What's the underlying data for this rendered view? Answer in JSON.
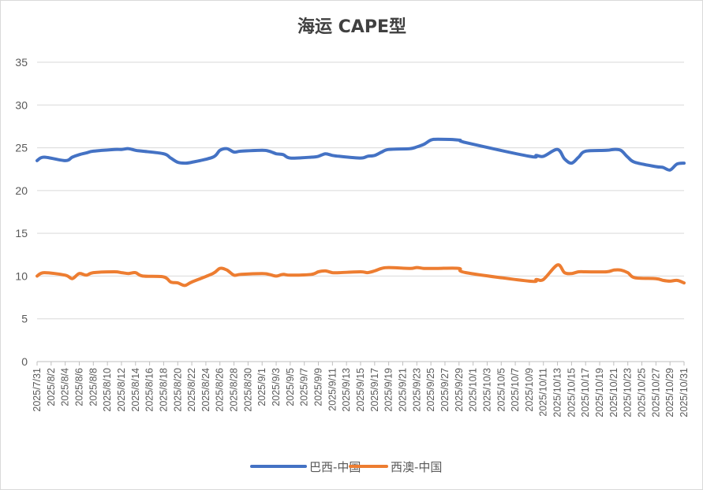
{
  "chart_data": {
    "type": "line",
    "title": "海运 CAPE型",
    "xlabel": "",
    "ylabel": "",
    "ylim": [
      0,
      35
    ],
    "yticks": [
      0,
      5,
      10,
      15,
      20,
      25,
      30,
      35
    ],
    "grid": true,
    "legend_position": "bottom",
    "x_start": "2025/7/31",
    "x_end": "2025/10/31",
    "x_tick_labels": [
      "2025/7/31",
      "2025/8/2",
      "2025/8/4",
      "2025/8/6",
      "2025/8/8",
      "2025/8/10",
      "2025/8/12",
      "2025/8/14",
      "2025/8/16",
      "2025/8/18",
      "2025/8/20",
      "2025/8/22",
      "2025/8/24",
      "2025/8/26",
      "2025/8/28",
      "2025/8/30",
      "2025/9/1",
      "2025/9/3",
      "2025/9/5",
      "2025/9/7",
      "2025/9/9",
      "2025/9/11",
      "2025/9/13",
      "2025/9/15",
      "2025/9/17",
      "2025/9/19",
      "2025/9/21",
      "2025/9/23",
      "2025/9/25",
      "2025/9/27",
      "2025/9/29",
      "2025/10/1",
      "2025/10/3",
      "2025/10/5",
      "2025/10/7",
      "2025/10/9",
      "2025/10/11",
      "2025/10/13",
      "2025/10/15",
      "2025/10/17",
      "2025/10/19",
      "2025/10/21",
      "2025/10/23",
      "2025/10/25",
      "2025/10/27",
      "2025/10/29",
      "2025/10/31"
    ],
    "series": [
      {
        "name": "巴西-中国",
        "color": "#4472c4",
        "x": [
          "2025/7/31",
          "2025/8/1",
          "2025/8/4",
          "2025/8/5",
          "2025/8/6",
          "2025/8/7",
          "2025/8/8",
          "2025/8/11",
          "2025/8/12",
          "2025/8/13",
          "2025/8/14",
          "2025/8/15",
          "2025/8/18",
          "2025/8/19",
          "2025/8/20",
          "2025/8/21",
          "2025/8/22",
          "2025/8/25",
          "2025/8/26",
          "2025/8/27",
          "2025/8/28",
          "2025/8/29",
          "2025/9/1",
          "2025/9/2",
          "2025/9/3",
          "2025/9/4",
          "2025/9/5",
          "2025/9/8",
          "2025/9/9",
          "2025/9/10",
          "2025/9/11",
          "2025/9/12",
          "2025/9/15",
          "2025/9/16",
          "2025/9/17",
          "2025/9/18",
          "2025/9/19",
          "2025/9/22",
          "2025/9/23",
          "2025/9/24",
          "2025/9/25",
          "2025/9/26",
          "2025/9/29",
          "2025/9/30",
          "2025/10/9",
          "2025/10/10",
          "2025/10/11",
          "2025/10/13",
          "2025/10/14",
          "2025/10/15",
          "2025/10/16",
          "2025/10/17",
          "2025/10/20",
          "2025/10/21",
          "2025/10/22",
          "2025/10/23",
          "2025/10/24",
          "2025/10/27",
          "2025/10/28",
          "2025/10/29",
          "2025/10/30",
          "2025/10/31"
        ],
        "values": [
          23.5,
          23.9,
          23.5,
          23.9,
          24.2,
          24.4,
          24.6,
          24.8,
          24.8,
          24.9,
          24.7,
          24.6,
          24.3,
          23.8,
          23.3,
          23.2,
          23.3,
          23.9,
          24.7,
          24.9,
          24.5,
          24.6,
          24.7,
          24.6,
          24.3,
          24.2,
          23.8,
          23.9,
          24.0,
          24.3,
          24.1,
          24.0,
          23.8,
          24.0,
          24.1,
          24.5,
          24.8,
          24.9,
          25.1,
          25.4,
          25.9,
          26.0,
          25.9,
          25.6,
          24.0,
          24.1,
          24.0,
          24.8,
          23.7,
          23.2,
          23.9,
          24.6,
          24.7,
          24.8,
          24.7,
          23.9,
          23.3,
          22.8,
          22.7,
          22.4,
          23.1,
          23.2
        ]
      },
      {
        "name": "西澳-中国",
        "color": "#ed7d31",
        "x": [
          "2025/7/31",
          "2025/8/1",
          "2025/8/4",
          "2025/8/5",
          "2025/8/6",
          "2025/8/7",
          "2025/8/8",
          "2025/8/11",
          "2025/8/12",
          "2025/8/13",
          "2025/8/14",
          "2025/8/15",
          "2025/8/18",
          "2025/8/19",
          "2025/8/20",
          "2025/8/21",
          "2025/8/22",
          "2025/8/25",
          "2025/8/26",
          "2025/8/27",
          "2025/8/28",
          "2025/8/29",
          "2025/9/1",
          "2025/9/2",
          "2025/9/3",
          "2025/9/4",
          "2025/9/5",
          "2025/9/8",
          "2025/9/9",
          "2025/9/10",
          "2025/9/11",
          "2025/9/12",
          "2025/9/15",
          "2025/9/16",
          "2025/9/17",
          "2025/9/18",
          "2025/9/19",
          "2025/9/22",
          "2025/9/23",
          "2025/9/24",
          "2025/9/25",
          "2025/9/26",
          "2025/9/29",
          "2025/9/30",
          "2025/10/9",
          "2025/10/10",
          "2025/10/11",
          "2025/10/13",
          "2025/10/14",
          "2025/10/15",
          "2025/10/16",
          "2025/10/17",
          "2025/10/20",
          "2025/10/21",
          "2025/10/22",
          "2025/10/23",
          "2025/10/24",
          "2025/10/27",
          "2025/10/28",
          "2025/10/29",
          "2025/10/30",
          "2025/10/31"
        ],
        "values": [
          10.0,
          10.4,
          10.1,
          9.7,
          10.3,
          10.1,
          10.4,
          10.5,
          10.4,
          10.3,
          10.4,
          10.0,
          9.9,
          9.3,
          9.2,
          8.9,
          9.3,
          10.3,
          10.9,
          10.7,
          10.1,
          10.2,
          10.3,
          10.2,
          10.0,
          10.2,
          10.1,
          10.2,
          10.5,
          10.6,
          10.4,
          10.4,
          10.5,
          10.4,
          10.6,
          10.9,
          11.0,
          10.9,
          11.0,
          10.9,
          10.9,
          10.9,
          10.9,
          10.4,
          9.4,
          9.6,
          9.6,
          11.3,
          10.4,
          10.3,
          10.5,
          10.5,
          10.5,
          10.7,
          10.7,
          10.4,
          9.8,
          9.7,
          9.5,
          9.4,
          9.5,
          9.2
        ]
      }
    ]
  }
}
